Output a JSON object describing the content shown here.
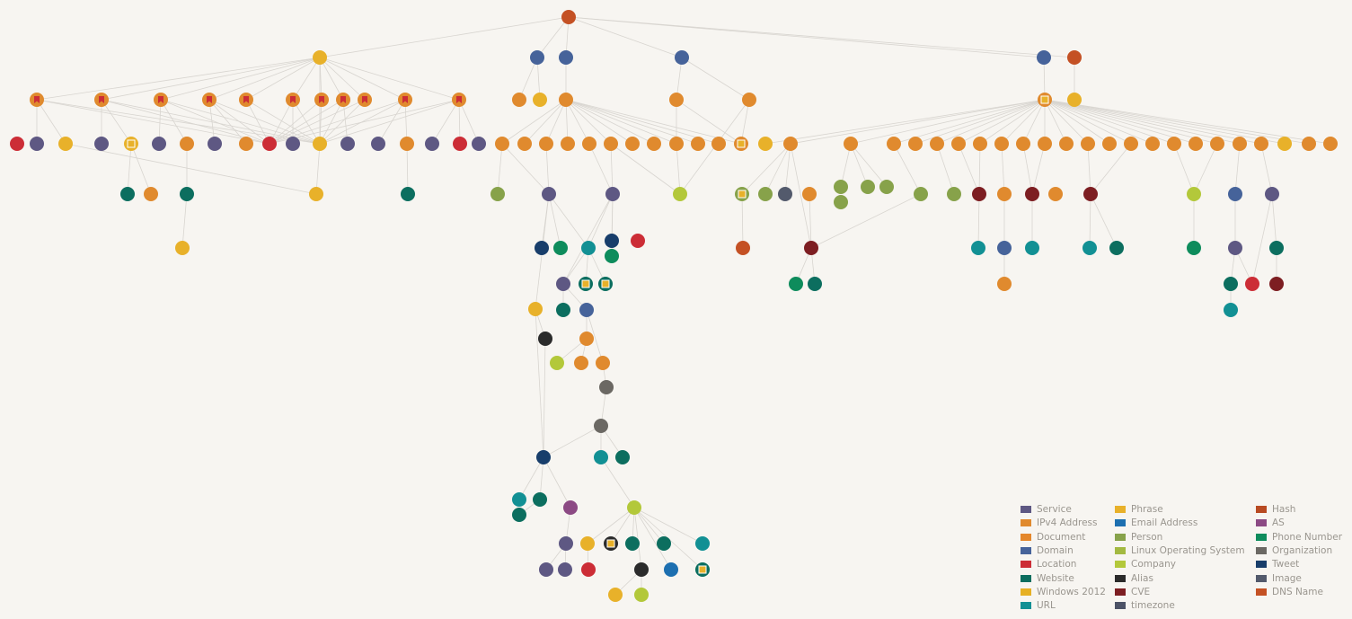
{
  "colors": {
    "background": "#f7f5f1",
    "edge": "#d8d5d0",
    "legend_text": "#9a968f"
  },
  "legend": {
    "items": [
      {
        "label": "Service",
        "color": "#5e5883"
      },
      {
        "label": "IPv4 Address",
        "color": "#e08a2e"
      },
      {
        "label": "Document",
        "color": "#e4872b"
      },
      {
        "label": "Domain",
        "color": "#46639a"
      },
      {
        "label": "Location",
        "color": "#cc2d36"
      },
      {
        "label": "Website",
        "color": "#0c6e5f"
      },
      {
        "label": "Windows 2012",
        "color": "#e6b024"
      },
      {
        "label": "URL",
        "color": "#129094"
      },
      {
        "label": "Phrase",
        "color": "#e8b12a"
      },
      {
        "label": "Email Address",
        "color": "#1d6fb0"
      },
      {
        "label": "Person",
        "color": "#87a24a"
      },
      {
        "label": "Linux Operating System",
        "color": "#a3b941"
      },
      {
        "label": "Company",
        "color": "#b3c83a"
      },
      {
        "label": "Alias",
        "color": "#2b2b2b"
      },
      {
        "label": "CVE",
        "color": "#7d1e22"
      },
      {
        "label": "timezone",
        "color": "#4c5266"
      },
      {
        "label": "Hash",
        "color": "#b84a22"
      },
      {
        "label": "AS",
        "color": "#8c4a84"
      },
      {
        "label": "Phone Number",
        "color": "#0e8c5c"
      },
      {
        "label": "Organization",
        "color": "#6b6863"
      },
      {
        "label": "Tweet",
        "color": "#183e6b"
      },
      {
        "label": "Image",
        "color": "#535a6c"
      },
      {
        "label": "DNS Name",
        "color": "#c45124"
      }
    ]
  }
}
